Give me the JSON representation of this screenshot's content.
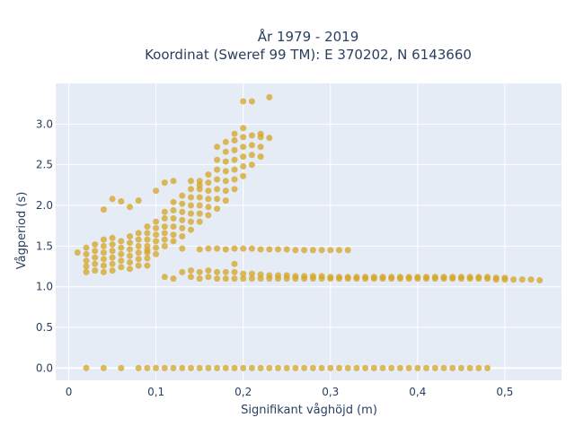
{
  "chart_data": {
    "type": "scatter",
    "title": [
      "År 1979 - 2019",
      "Koordinat (Sweref 99 TM): E 370202, N 6143660"
    ],
    "xlabel": "Signifikant våghöjd (m)",
    "ylabel": "Vågperiod (s)",
    "xlim": [
      -0.015,
      0.565
    ],
    "ylim": [
      -0.15,
      3.5
    ],
    "grid": true,
    "background": "#e5ecf6",
    "marker_color": "#d4a421",
    "x_ticks": [
      {
        "value": 0,
        "label": "0"
      },
      {
        "value": 0.1,
        "label": "0,1"
      },
      {
        "value": 0.2,
        "label": "0,2"
      },
      {
        "value": 0.3,
        "label": "0,3"
      },
      {
        "value": 0.4,
        "label": "0,4"
      },
      {
        "value": 0.5,
        "label": "0,5"
      }
    ],
    "y_ticks": [
      {
        "value": 0,
        "label": "0.0"
      },
      {
        "value": 0.5,
        "label": "0.5"
      },
      {
        "value": 1.0,
        "label": "1.0"
      },
      {
        "value": 1.5,
        "label": "1.5"
      },
      {
        "value": 2.0,
        "label": "2.0"
      },
      {
        "value": 2.5,
        "label": "2.5"
      },
      {
        "value": 3.0,
        "label": "3.0"
      }
    ],
    "series": [
      {
        "points": [
          [
            0.02,
            0.0
          ],
          [
            0.04,
            0.0
          ],
          [
            0.06,
            0.0
          ],
          [
            0.08,
            0.0
          ],
          [
            0.09,
            0.0
          ],
          [
            0.1,
            0.0
          ],
          [
            0.11,
            0.0
          ],
          [
            0.12,
            0.0
          ],
          [
            0.13,
            0.0
          ],
          [
            0.14,
            0.0
          ],
          [
            0.15,
            0.0
          ],
          [
            0.16,
            0.0
          ],
          [
            0.17,
            0.0
          ],
          [
            0.18,
            0.0
          ],
          [
            0.19,
            0.0
          ],
          [
            0.2,
            0.0
          ],
          [
            0.21,
            0.0
          ],
          [
            0.22,
            0.0
          ],
          [
            0.23,
            0.0
          ],
          [
            0.24,
            0.0
          ],
          [
            0.25,
            0.0
          ],
          [
            0.26,
            0.0
          ],
          [
            0.27,
            0.0
          ],
          [
            0.28,
            0.0
          ],
          [
            0.29,
            0.0
          ],
          [
            0.3,
            0.0
          ],
          [
            0.31,
            0.0
          ],
          [
            0.32,
            0.0
          ],
          [
            0.33,
            0.0
          ],
          [
            0.34,
            0.0
          ],
          [
            0.35,
            0.0
          ],
          [
            0.36,
            0.0
          ],
          [
            0.37,
            0.0
          ],
          [
            0.38,
            0.0
          ],
          [
            0.39,
            0.0
          ],
          [
            0.4,
            0.0
          ],
          [
            0.41,
            0.0
          ],
          [
            0.42,
            0.0
          ],
          [
            0.43,
            0.0
          ],
          [
            0.44,
            0.0
          ],
          [
            0.45,
            0.0
          ],
          [
            0.46,
            0.0
          ],
          [
            0.47,
            0.0
          ],
          [
            0.48,
            0.0
          ],
          [
            0.01,
            1.42
          ],
          [
            0.02,
            1.18
          ],
          [
            0.02,
            1.25
          ],
          [
            0.02,
            1.32
          ],
          [
            0.02,
            1.4
          ],
          [
            0.02,
            1.48
          ],
          [
            0.03,
            1.2
          ],
          [
            0.03,
            1.28
          ],
          [
            0.03,
            1.36
          ],
          [
            0.03,
            1.44
          ],
          [
            0.03,
            1.52
          ],
          [
            0.04,
            1.18
          ],
          [
            0.04,
            1.26
          ],
          [
            0.04,
            1.34
          ],
          [
            0.04,
            1.42
          ],
          [
            0.04,
            1.5
          ],
          [
            0.04,
            1.58
          ],
          [
            0.05,
            1.2
          ],
          [
            0.05,
            1.28
          ],
          [
            0.05,
            1.36
          ],
          [
            0.05,
            1.44
          ],
          [
            0.05,
            1.52
          ],
          [
            0.05,
            1.6
          ],
          [
            0.06,
            1.24
          ],
          [
            0.06,
            1.32
          ],
          [
            0.06,
            1.4
          ],
          [
            0.06,
            1.48
          ],
          [
            0.06,
            1.56
          ],
          [
            0.07,
            1.22
          ],
          [
            0.07,
            1.3
          ],
          [
            0.07,
            1.38
          ],
          [
            0.07,
            1.46
          ],
          [
            0.07,
            1.54
          ],
          [
            0.07,
            1.62
          ],
          [
            0.08,
            1.26
          ],
          [
            0.08,
            1.34
          ],
          [
            0.08,
            1.42
          ],
          [
            0.08,
            1.5
          ],
          [
            0.08,
            1.58
          ],
          [
            0.08,
            1.66
          ],
          [
            0.09,
            1.35
          ],
          [
            0.09,
            1.42
          ],
          [
            0.09,
            1.5
          ],
          [
            0.09,
            1.58
          ],
          [
            0.09,
            1.66
          ],
          [
            0.09,
            1.74
          ],
          [
            0.1,
            1.4
          ],
          [
            0.1,
            1.48
          ],
          [
            0.1,
            1.56
          ],
          [
            0.1,
            1.64
          ],
          [
            0.1,
            1.72
          ],
          [
            0.1,
            1.8
          ],
          [
            0.11,
            1.5
          ],
          [
            0.11,
            1.58
          ],
          [
            0.11,
            1.66
          ],
          [
            0.11,
            1.74
          ],
          [
            0.11,
            1.84
          ],
          [
            0.11,
            1.92
          ],
          [
            0.12,
            1.56
          ],
          [
            0.12,
            1.64
          ],
          [
            0.12,
            1.74
          ],
          [
            0.12,
            1.84
          ],
          [
            0.12,
            1.94
          ],
          [
            0.12,
            2.04
          ],
          [
            0.13,
            1.62
          ],
          [
            0.13,
            1.72
          ],
          [
            0.13,
            1.82
          ],
          [
            0.13,
            1.92
          ],
          [
            0.13,
            2.02
          ],
          [
            0.13,
            2.12
          ],
          [
            0.14,
            1.7
          ],
          [
            0.14,
            1.8
          ],
          [
            0.14,
            1.9
          ],
          [
            0.14,
            2.0
          ],
          [
            0.14,
            2.1
          ],
          [
            0.14,
            2.2
          ],
          [
            0.15,
            1.8
          ],
          [
            0.15,
            1.9
          ],
          [
            0.15,
            2.0
          ],
          [
            0.15,
            2.1
          ],
          [
            0.15,
            2.2
          ],
          [
            0.15,
            2.3
          ],
          [
            0.16,
            1.88
          ],
          [
            0.16,
            1.98
          ],
          [
            0.16,
            2.08
          ],
          [
            0.16,
            2.18
          ],
          [
            0.16,
            2.28
          ],
          [
            0.16,
            2.38
          ],
          [
            0.17,
            1.96
          ],
          [
            0.17,
            2.08
          ],
          [
            0.17,
            2.2
          ],
          [
            0.17,
            2.32
          ],
          [
            0.17,
            2.44
          ],
          [
            0.17,
            2.56
          ],
          [
            0.18,
            2.06
          ],
          [
            0.18,
            2.18
          ],
          [
            0.18,
            2.3
          ],
          [
            0.18,
            2.42
          ],
          [
            0.18,
            2.54
          ],
          [
            0.18,
            2.66
          ],
          [
            0.19,
            2.2
          ],
          [
            0.19,
            2.32
          ],
          [
            0.19,
            2.44
          ],
          [
            0.19,
            2.56
          ],
          [
            0.19,
            2.68
          ],
          [
            0.19,
            2.8
          ],
          [
            0.2,
            2.36
          ],
          [
            0.2,
            2.48
          ],
          [
            0.2,
            2.6
          ],
          [
            0.2,
            2.72
          ],
          [
            0.2,
            2.84
          ],
          [
            0.21,
            2.5
          ],
          [
            0.21,
            2.62
          ],
          [
            0.21,
            2.74
          ],
          [
            0.21,
            2.86
          ],
          [
            0.22,
            2.6
          ],
          [
            0.22,
            2.72
          ],
          [
            0.22,
            2.84
          ],
          [
            0.04,
            1.95
          ],
          [
            0.05,
            2.08
          ],
          [
            0.06,
            2.05
          ],
          [
            0.07,
            1.98
          ],
          [
            0.08,
            2.06
          ],
          [
            0.1,
            2.18
          ],
          [
            0.11,
            2.28
          ],
          [
            0.12,
            2.3
          ],
          [
            0.14,
            2.3
          ],
          [
            0.15,
            2.25
          ],
          [
            0.17,
            2.72
          ],
          [
            0.18,
            2.78
          ],
          [
            0.19,
            2.88
          ],
          [
            0.2,
            2.95
          ],
          [
            0.22,
            2.88
          ],
          [
            0.23,
            2.83
          ],
          [
            0.2,
            3.28
          ],
          [
            0.21,
            3.28
          ],
          [
            0.23,
            3.33
          ],
          [
            0.09,
            1.45
          ],
          [
            0.12,
            1.1
          ],
          [
            0.11,
            1.12
          ],
          [
            0.09,
            1.26
          ],
          [
            0.19,
            1.28
          ],
          [
            0.13,
            1.47
          ],
          [
            0.15,
            1.46
          ],
          [
            0.16,
            1.47
          ],
          [
            0.17,
            1.47
          ],
          [
            0.18,
            1.46
          ],
          [
            0.19,
            1.47
          ],
          [
            0.2,
            1.47
          ],
          [
            0.21,
            1.47
          ],
          [
            0.22,
            1.46
          ],
          [
            0.23,
            1.46
          ],
          [
            0.24,
            1.46
          ],
          [
            0.25,
            1.46
          ],
          [
            0.26,
            1.45
          ],
          [
            0.27,
            1.45
          ],
          [
            0.28,
            1.45
          ],
          [
            0.29,
            1.45
          ],
          [
            0.3,
            1.45
          ],
          [
            0.31,
            1.45
          ],
          [
            0.32,
            1.45
          ],
          [
            0.13,
            1.18
          ],
          [
            0.14,
            1.12
          ],
          [
            0.14,
            1.2
          ],
          [
            0.15,
            1.1
          ],
          [
            0.15,
            1.18
          ],
          [
            0.16,
            1.12
          ],
          [
            0.16,
            1.2
          ],
          [
            0.17,
            1.1
          ],
          [
            0.17,
            1.18
          ],
          [
            0.18,
            1.1
          ],
          [
            0.18,
            1.18
          ],
          [
            0.19,
            1.1
          ],
          [
            0.19,
            1.18
          ],
          [
            0.2,
            1.1
          ],
          [
            0.2,
            1.16
          ],
          [
            0.21,
            1.1
          ],
          [
            0.21,
            1.16
          ],
          [
            0.22,
            1.1
          ],
          [
            0.22,
            1.15
          ],
          [
            0.23,
            1.1
          ],
          [
            0.23,
            1.14
          ],
          [
            0.24,
            1.1
          ],
          [
            0.24,
            1.14
          ],
          [
            0.25,
            1.1
          ],
          [
            0.25,
            1.14
          ],
          [
            0.26,
            1.1
          ],
          [
            0.26,
            1.13
          ],
          [
            0.27,
            1.1
          ],
          [
            0.27,
            1.13
          ],
          [
            0.28,
            1.1
          ],
          [
            0.28,
            1.13
          ],
          [
            0.29,
            1.1
          ],
          [
            0.29,
            1.13
          ],
          [
            0.3,
            1.1
          ],
          [
            0.3,
            1.12
          ],
          [
            0.31,
            1.1
          ],
          [
            0.31,
            1.12
          ],
          [
            0.32,
            1.1
          ],
          [
            0.32,
            1.12
          ],
          [
            0.33,
            1.1
          ],
          [
            0.33,
            1.12
          ],
          [
            0.34,
            1.1
          ],
          [
            0.34,
            1.12
          ],
          [
            0.35,
            1.1
          ],
          [
            0.35,
            1.12
          ],
          [
            0.36,
            1.1
          ],
          [
            0.36,
            1.12
          ],
          [
            0.37,
            1.1
          ],
          [
            0.37,
            1.12
          ],
          [
            0.38,
            1.1
          ],
          [
            0.38,
            1.12
          ],
          [
            0.39,
            1.1
          ],
          [
            0.39,
            1.12
          ],
          [
            0.4,
            1.1
          ],
          [
            0.4,
            1.12
          ],
          [
            0.41,
            1.1
          ],
          [
            0.41,
            1.12
          ],
          [
            0.42,
            1.1
          ],
          [
            0.42,
            1.12
          ],
          [
            0.43,
            1.1
          ],
          [
            0.43,
            1.12
          ],
          [
            0.44,
            1.1
          ],
          [
            0.44,
            1.12
          ],
          [
            0.45,
            1.1
          ],
          [
            0.45,
            1.12
          ],
          [
            0.46,
            1.1
          ],
          [
            0.46,
            1.12
          ],
          [
            0.47,
            1.1
          ],
          [
            0.47,
            1.12
          ],
          [
            0.48,
            1.1
          ],
          [
            0.48,
            1.12
          ],
          [
            0.49,
            1.09
          ],
          [
            0.49,
            1.11
          ],
          [
            0.5,
            1.09
          ],
          [
            0.5,
            1.11
          ],
          [
            0.51,
            1.09
          ],
          [
            0.52,
            1.09
          ],
          [
            0.53,
            1.09
          ],
          [
            0.54,
            1.08
          ]
        ]
      }
    ]
  }
}
